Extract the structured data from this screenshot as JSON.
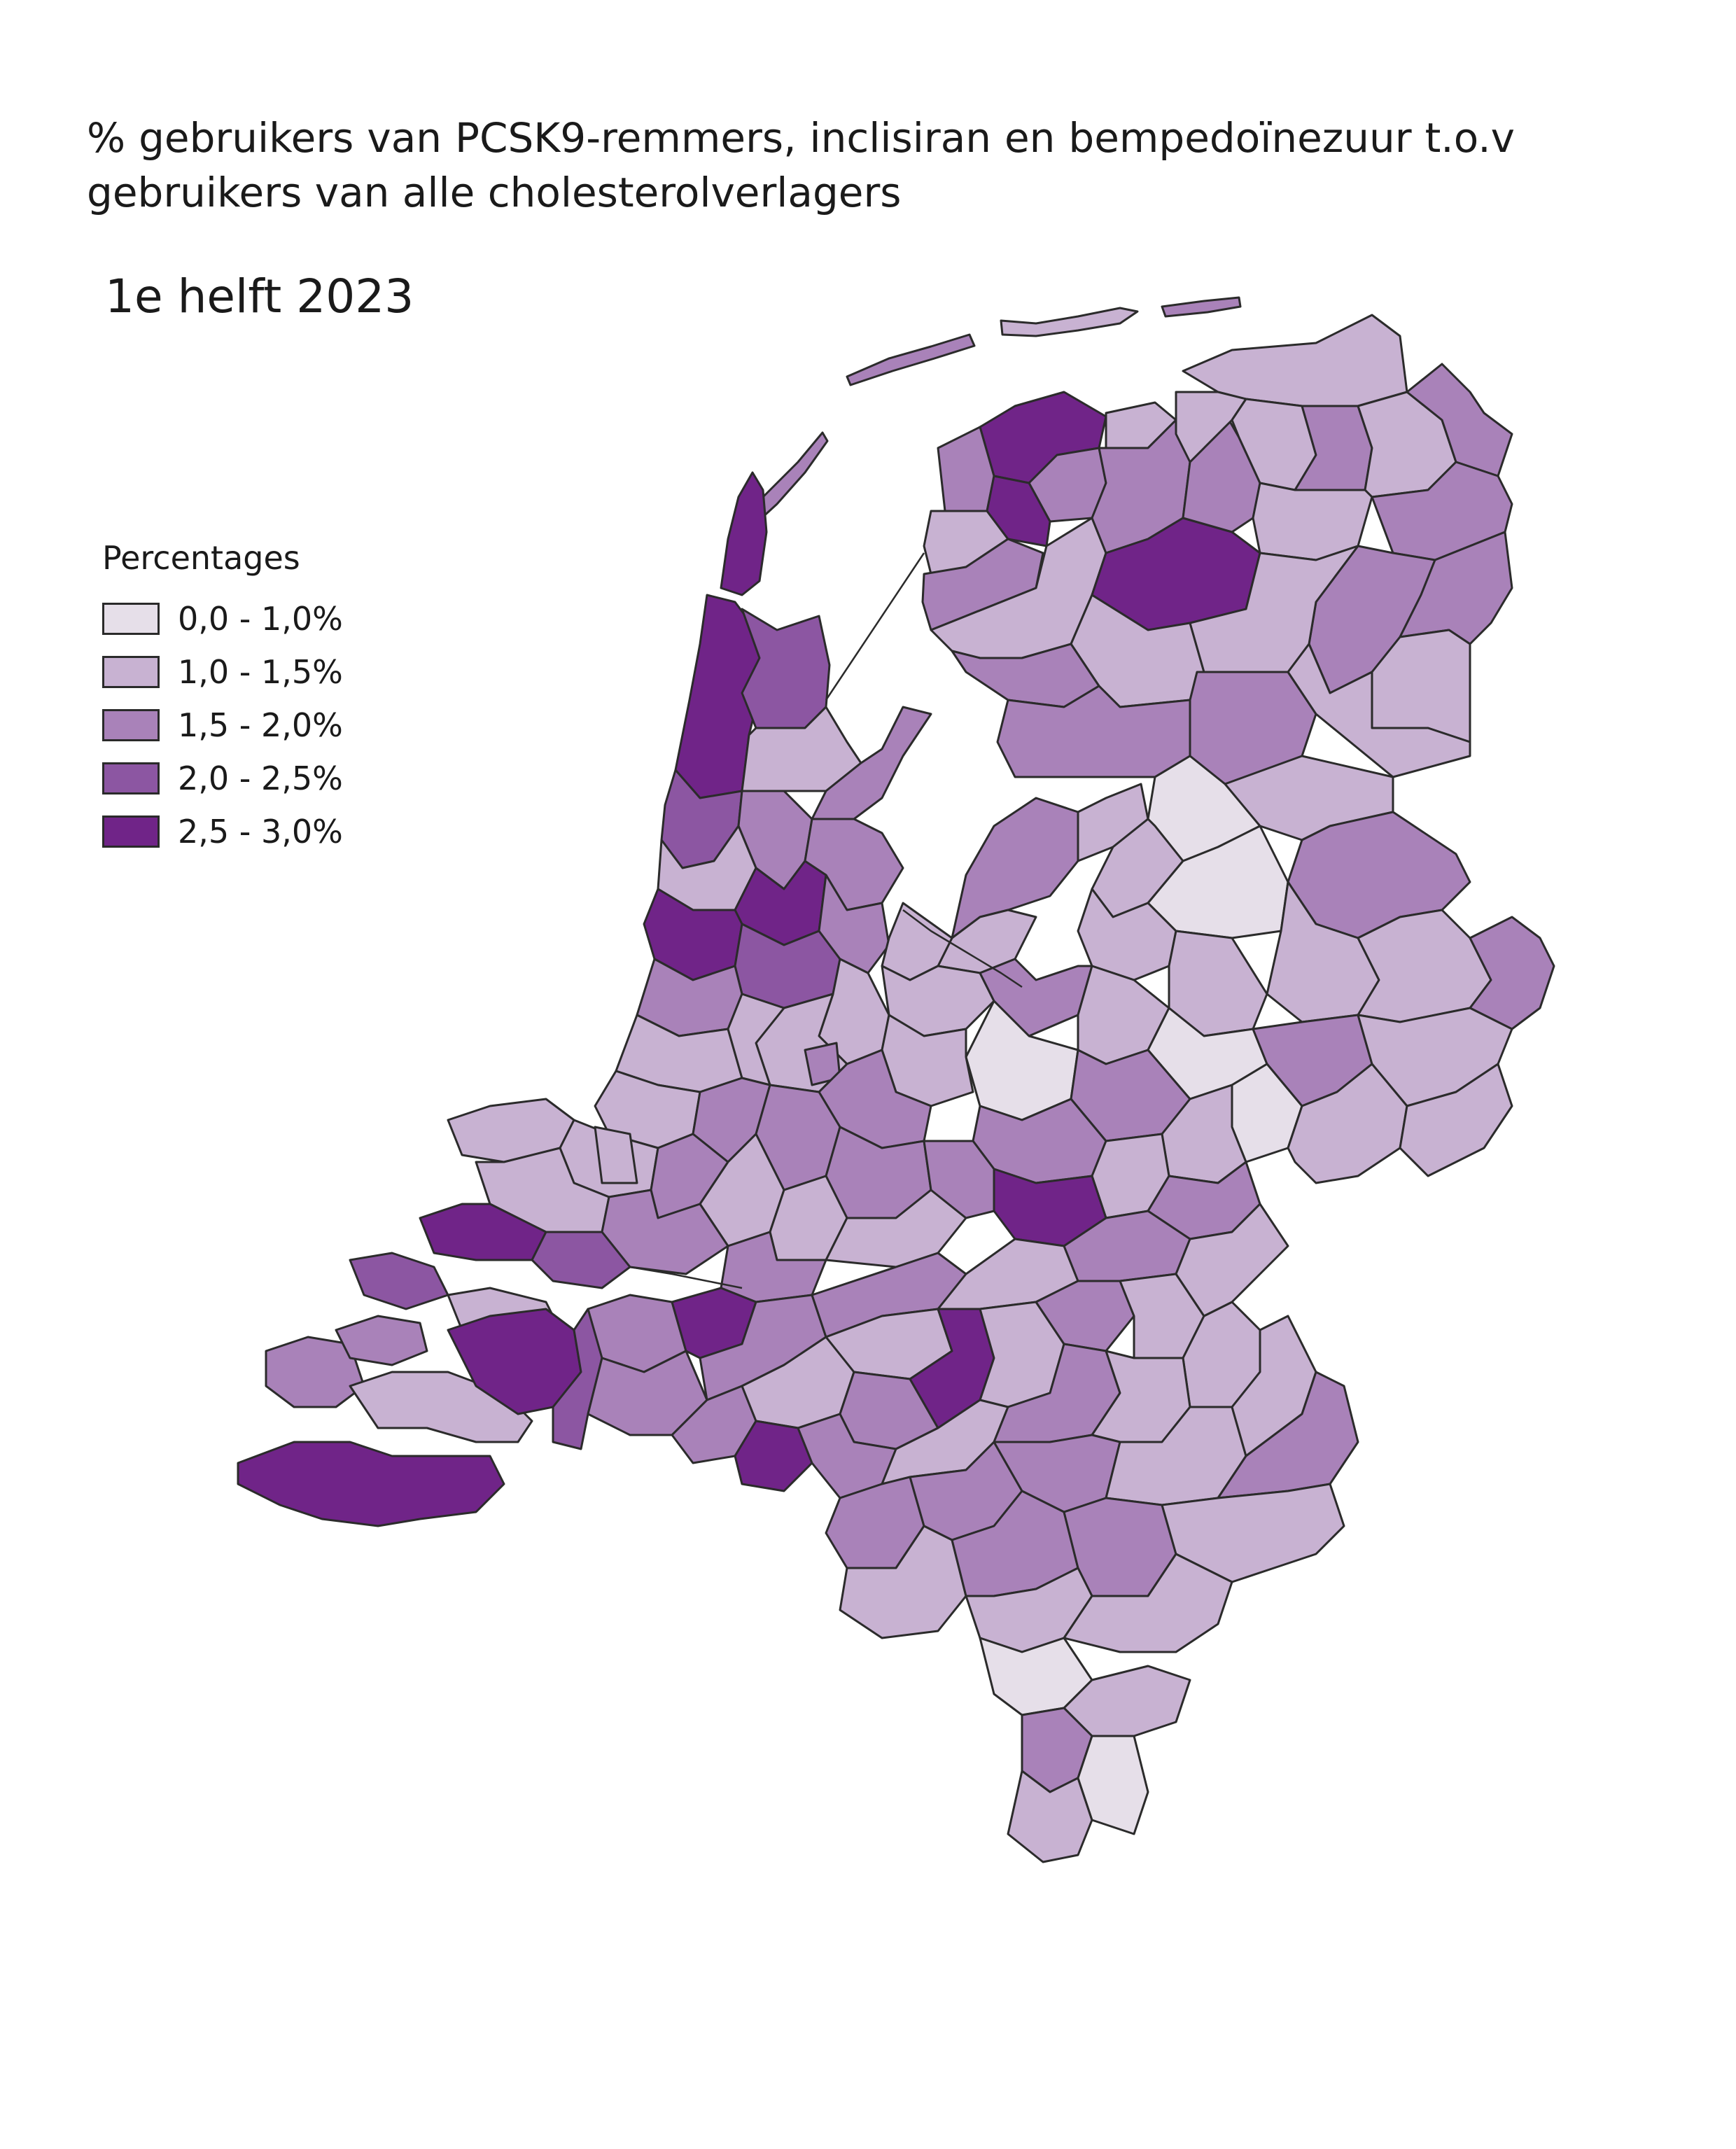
{
  "title": {
    "line1_words": [
      "%",
      "gebruikers",
      "van",
      "PCSK9-remmers,",
      "inclisiran",
      "en",
      "bempedoïnezuur",
      "t.o.v"
    ],
    "line2": "gebruikers van alle cholesterolverlagers"
  },
  "subtitle": "1e helft 2023",
  "legend": {
    "title": "Percentages",
    "classes": [
      {
        "label": "0,0 - 1,0%",
        "color": "#e6dfe9"
      },
      {
        "label": "1,0 - 1,5%",
        "color": "#c8b2d2"
      },
      {
        "label": "1,5 - 2,0%",
        "color": "#a982b9"
      },
      {
        "label": "2,0 - 2,5%",
        "color": "#8c56a2"
      },
      {
        "label": "2,5 - 3,0%",
        "color": "#702488"
      }
    ]
  },
  "map": {
    "outline_color": "#2b2b2b",
    "region_classes": [
      2,
      2,
      1,
      2,
      4,
      4,
      3,
      3,
      1,
      2,
      2,
      1,
      4,
      4,
      3,
      2,
      2,
      4,
      2,
      2,
      1,
      4,
      2,
      1,
      1,
      2,
      4,
      1,
      2,
      2,
      1,
      1,
      1,
      2,
      1,
      2,
      1,
      2,
      2,
      2,
      1,
      1,
      2,
      1,
      2,
      2,
      1,
      1,
      1,
      0,
      1,
      2,
      1,
      0,
      1,
      1,
      1,
      1,
      2,
      1,
      2,
      1,
      0,
      2,
      1,
      0,
      1,
      1,
      0,
      2,
      1,
      2,
      1,
      2,
      1,
      1,
      1,
      2,
      2,
      2,
      1,
      1,
      1,
      2,
      2,
      2,
      1,
      1,
      1,
      2,
      1,
      1,
      1
    ]
  }
}
